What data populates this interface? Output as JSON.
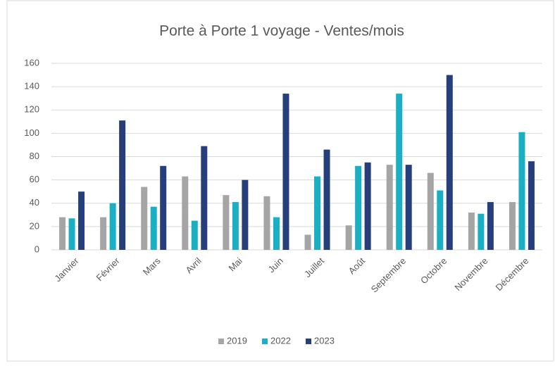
{
  "chart_data": {
    "type": "bar",
    "title": "Porte à Porte 1 voyage - Ventes/mois",
    "categories": [
      "Janvier",
      "Février",
      "Mars",
      "Avril",
      "Mai",
      "Juin",
      "Juillet",
      "Août",
      "Septembre",
      "Octobre",
      "Novembre",
      "Décembre"
    ],
    "series": [
      {
        "name": "2019",
        "color": "#a5a5a5",
        "values": [
          28,
          28,
          54,
          63,
          47,
          46,
          13,
          21,
          73,
          66,
          32,
          41
        ]
      },
      {
        "name": "2022",
        "color": "#1aafc2",
        "values": [
          27,
          40,
          37,
          25,
          41,
          28,
          63,
          72,
          134,
          51,
          31,
          101
        ]
      },
      {
        "name": "2023",
        "color": "#263f7a",
        "values": [
          50,
          111,
          72,
          89,
          60,
          134,
          86,
          75,
          73,
          150,
          41,
          76
        ]
      }
    ],
    "ylim": [
      0,
      160
    ],
    "yticks": [
      0,
      20,
      40,
      60,
      80,
      100,
      120,
      140,
      160
    ],
    "grid": true,
    "legend": "bottom"
  }
}
